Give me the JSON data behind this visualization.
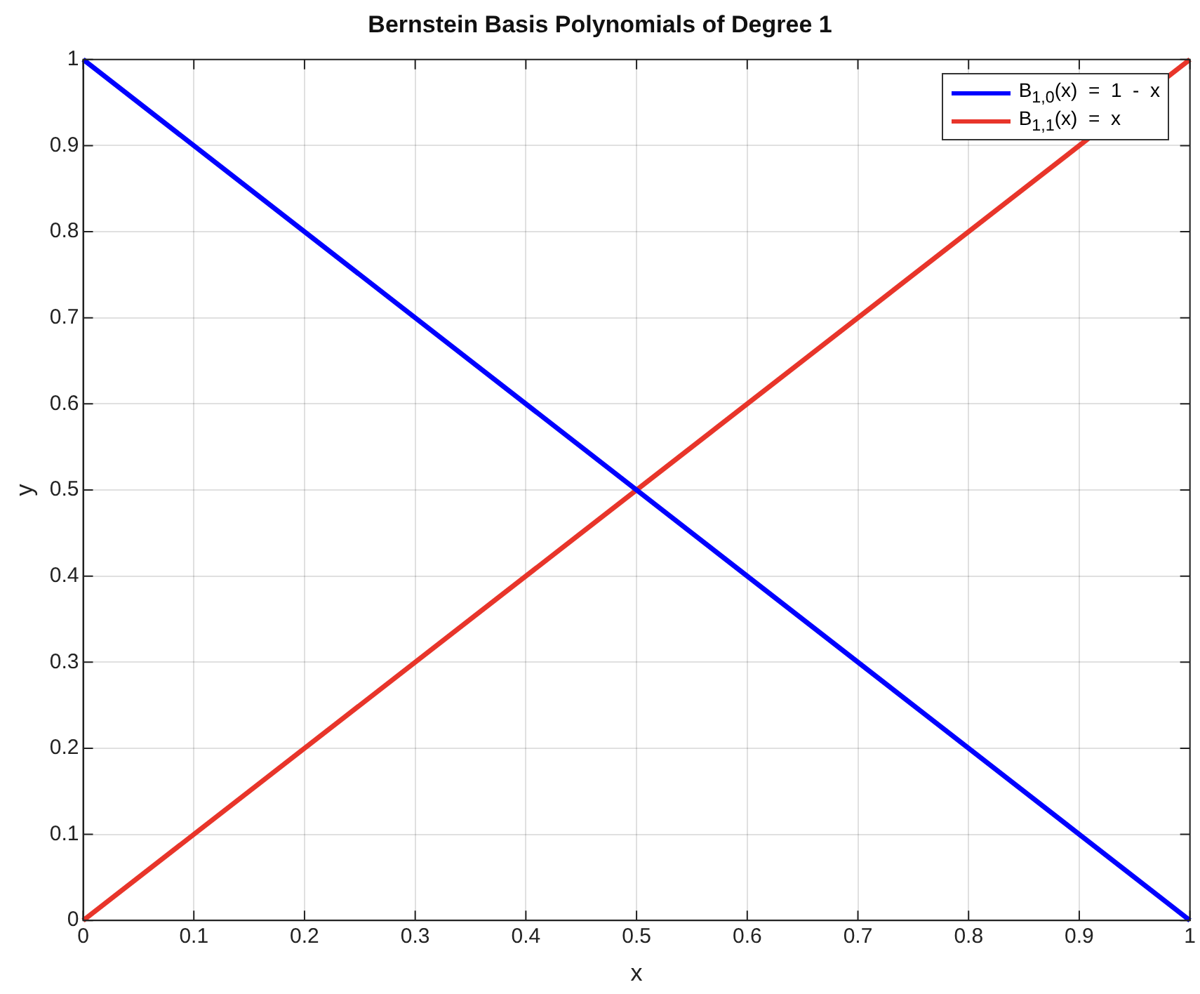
{
  "chart_data": {
    "type": "line",
    "title": "Bernstein Basis Polynomials of Degree 1",
    "xlabel": "x",
    "ylabel": "y",
    "x": [
      0,
      1
    ],
    "xlim": [
      0,
      1
    ],
    "ylim": [
      0,
      1
    ],
    "xticks": [
      0,
      0.1,
      0.2,
      0.3,
      0.4,
      0.5,
      0.6,
      0.7,
      0.8,
      0.9,
      1
    ],
    "yticks": [
      0,
      0.1,
      0.2,
      0.3,
      0.4,
      0.5,
      0.6,
      0.7,
      0.8,
      0.9,
      1
    ],
    "series": [
      {
        "name": "B$_{1,0}$(x)  =  1  -  x",
        "color": "#0000ff",
        "values": [
          1,
          0
        ]
      },
      {
        "name": "B$_{1,1}$(x)  =  x",
        "color": "#e8352a",
        "values": [
          0,
          1
        ]
      }
    ],
    "grid": true,
    "legend": "top right",
    "marker": "none",
    "line_style": "solid"
  }
}
